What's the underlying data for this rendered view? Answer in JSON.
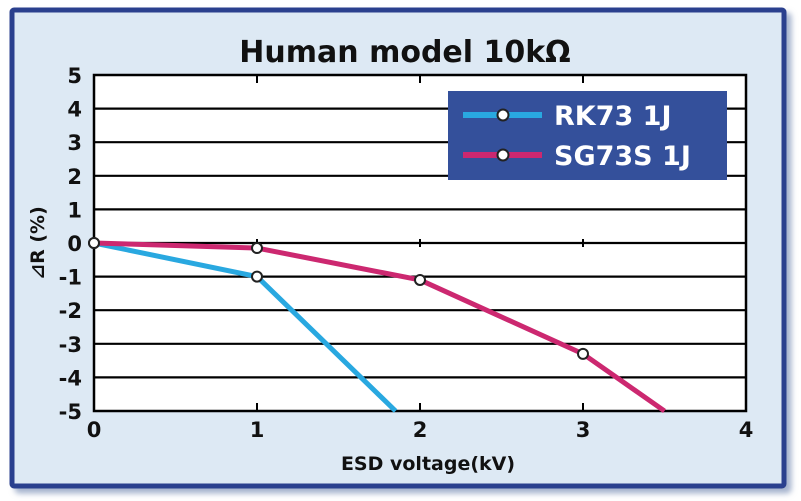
{
  "chart_data": {
    "type": "line",
    "title": "Human model 10kΩ",
    "xlabel": "ESD voltage(kV)",
    "ylabel": "⊿R (%)",
    "xlim": [
      0,
      4
    ],
    "ylim": [
      -5,
      5
    ],
    "xticks": [
      0,
      1,
      2,
      3,
      4
    ],
    "yticks": [
      5,
      4,
      3,
      2,
      1,
      0,
      -1,
      -2,
      -3,
      -4,
      -5
    ],
    "grid": true,
    "legend_position": "top-right",
    "series": [
      {
        "name": "RK73 1J",
        "color": "#29a8e0",
        "points": [
          {
            "x": 0,
            "y": 0,
            "marker": true
          },
          {
            "x": 1,
            "y": -1,
            "marker": true
          },
          {
            "x": 1.85,
            "y": -5,
            "marker": false
          }
        ]
      },
      {
        "name": "SG73S 1J",
        "color": "#cc2870",
        "points": [
          {
            "x": 0,
            "y": 0,
            "marker": true
          },
          {
            "x": 1,
            "y": -0.15,
            "marker": true
          },
          {
            "x": 2,
            "y": -1.1,
            "marker": true
          },
          {
            "x": 3,
            "y": -3.3,
            "marker": true
          },
          {
            "x": 3.5,
            "y": -5,
            "marker": false
          }
        ]
      }
    ]
  },
  "colors": {
    "frame_border": "#2b3f8e",
    "panel_background": "#dde9f4",
    "legend_background": "#34509b",
    "legend_text": "#ffffff"
  }
}
